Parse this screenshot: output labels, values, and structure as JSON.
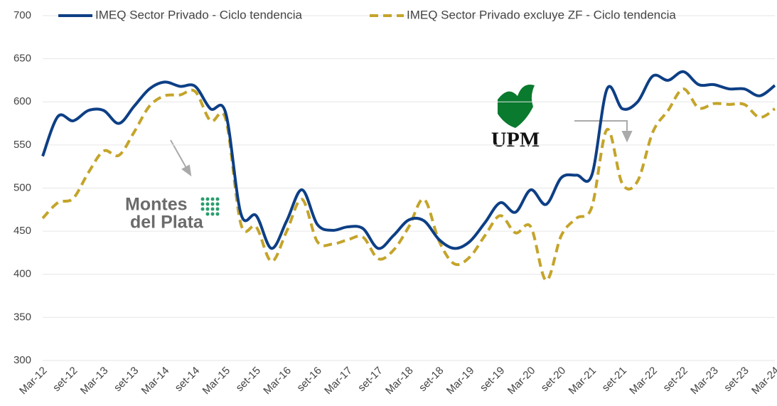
{
  "chart_data": {
    "type": "line",
    "categories": [
      "Mar-12",
      null,
      "set-12",
      null,
      "Mar-13",
      null,
      "set-13",
      null,
      "Mar-14",
      null,
      "set-14",
      null,
      "Mar-15",
      null,
      "set-15",
      null,
      "Mar-16",
      null,
      "set-16",
      null,
      "Mar-17",
      null,
      "set-17",
      null,
      "Mar-18",
      null,
      "set-18",
      null,
      "Mar-19",
      null,
      "set-19",
      null,
      "Mar-20",
      null,
      "set-20",
      null,
      "Mar-21",
      null,
      "set-21",
      null,
      "Mar-22",
      null,
      "set-22",
      null,
      "Mar-23",
      null,
      "set-23",
      null,
      "Mar-24"
    ],
    "series": [
      {
        "name": "IMEQ Sector Privado - Ciclo tendencia",
        "color": "#0d3f85",
        "dash": false,
        "values": [
          537,
          583,
          578,
          590,
          590,
          575,
          595,
          615,
          623,
          618,
          618,
          592,
          587,
          470,
          468,
          430,
          462,
          498,
          458,
          451,
          455,
          453,
          430,
          445,
          463,
          462,
          440,
          430,
          438,
          460,
          483,
          472,
          498,
          481,
          512,
          515,
          515,
          615,
          592,
          600,
          630,
          625,
          635,
          620,
          620,
          615,
          615,
          607,
          619
        ]
      },
      {
        "name": "IMEQ Sector Privado excluye ZF - Ciclo tendencia",
        "color": "#c4a42a",
        "dash": true,
        "values": [
          465,
          483,
          488,
          518,
          543,
          538,
          565,
          595,
          607,
          608,
          612,
          578,
          580,
          458,
          455,
          415,
          450,
          487,
          438,
          435,
          440,
          443,
          418,
          428,
          455,
          487,
          438,
          412,
          420,
          445,
          468,
          448,
          455,
          393,
          445,
          465,
          478,
          568,
          505,
          508,
          565,
          590,
          615,
          593,
          598,
          597,
          597,
          582,
          592
        ]
      }
    ],
    "ylim": [
      300,
      700
    ],
    "yticks": [
      300,
      350,
      400,
      450,
      500,
      550,
      600,
      650,
      700
    ],
    "grid": true,
    "legend": "top",
    "annotations": [
      "Montes",
      "del Plata",
      "UPM"
    ]
  }
}
